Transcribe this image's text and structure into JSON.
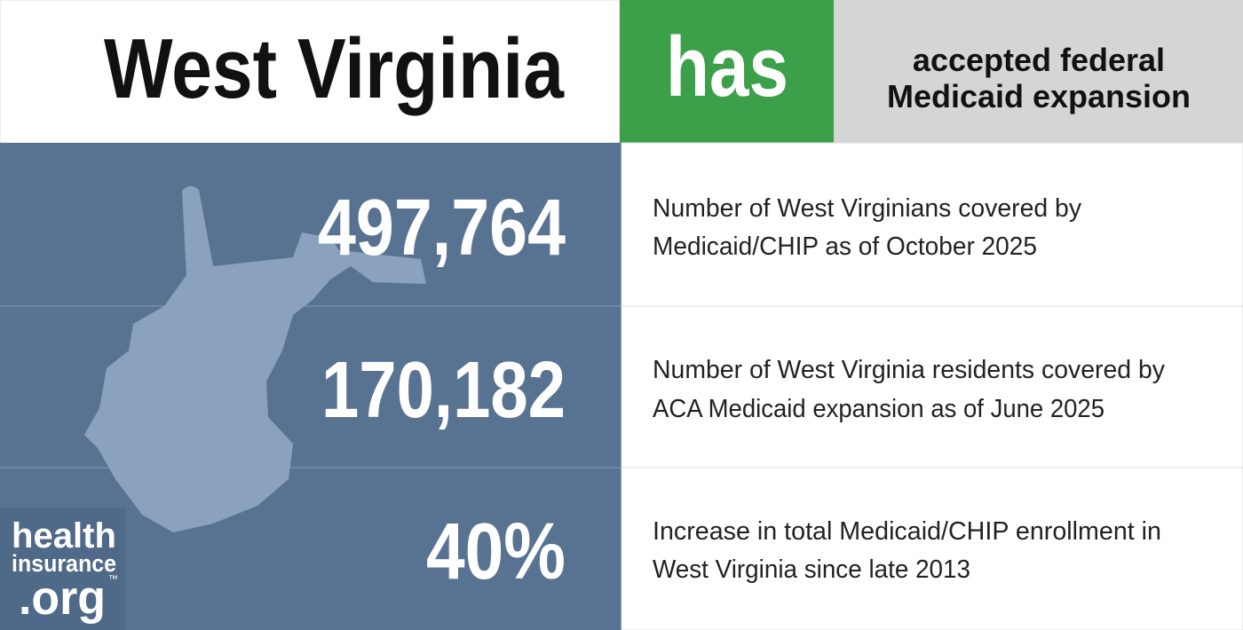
{
  "header": {
    "state": "West Virginia",
    "status": "has",
    "description": [
      "accepted federal",
      "Medicaid expansion"
    ]
  },
  "stats": [
    {
      "value": "497,764",
      "description": [
        "Number of West Virginians covered by",
        "Medicaid/CHIP as of October 2025"
      ]
    },
    {
      "value": "170,182",
      "description": [
        "Number of West Virginia residents covered by",
        "ACA Medicaid expansion as of June 2025"
      ]
    },
    {
      "value": "40%",
      "description": [
        "Increase in total Medicaid/CHIP enrollment in",
        "West Virginia since late 2013"
      ]
    }
  ],
  "logo": {
    "line1": "health",
    "line2": "insurance",
    "line3": ".org",
    "mark": "™"
  }
}
